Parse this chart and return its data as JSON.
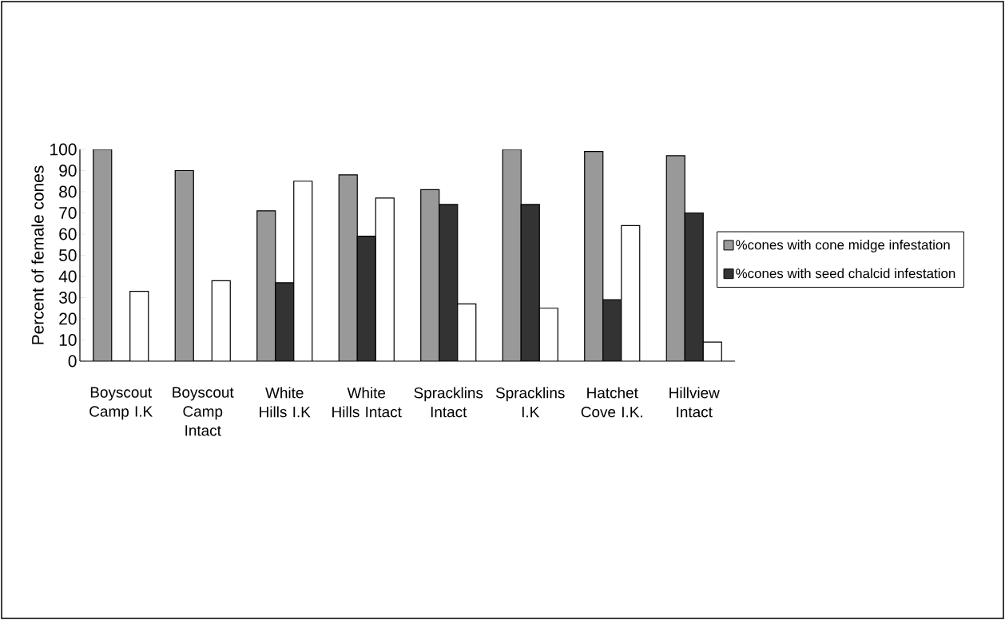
{
  "chart_data": {
    "type": "bar",
    "categories": [
      "Boyscout Camp I.K",
      "Boyscout Camp Intact",
      "White Hills I.K",
      "White Hills Intact",
      "Spracklins Intact",
      "Spracklins I.K",
      "Hatchet Cove I.K.",
      "Hillview Intact"
    ],
    "ylabel": "Percent of female cones",
    "series": [
      {
        "name": "%cones with cone midge infestation",
        "color": "#999999",
        "values": [
          100,
          90,
          71,
          88,
          81,
          100,
          99,
          97
        ]
      },
      {
        "name": "%cones with seed chalcid infestation",
        "color": "#333333",
        "values": [
          0,
          0,
          37,
          59,
          74,
          74,
          29,
          70
        ]
      },
      {
        "color": "#ffffff",
        "values": [
          33,
          38,
          85,
          77,
          27,
          25,
          64,
          9
        ]
      }
    ],
    "ylim": [
      0,
      100
    ],
    "yticks": [
      0,
      10,
      20,
      30,
      40,
      50,
      60,
      70,
      80,
      90,
      100
    ],
    "grid": false,
    "legend": "right"
  }
}
